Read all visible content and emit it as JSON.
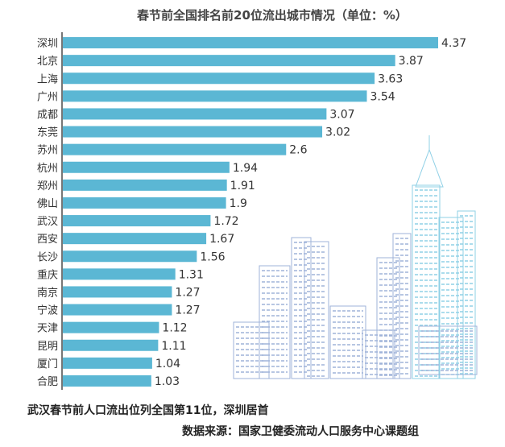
{
  "chart_data": {
    "type": "bar",
    "orientation": "horizontal",
    "title": "春节前全国排名前20位流出城市情况（单位：%）",
    "categories": [
      "深圳",
      "北京",
      "上海",
      "广州",
      "成都",
      "东莞",
      "苏州",
      "杭州",
      "郑州",
      "佛山",
      "武汉",
      "西安",
      "长沙",
      "重庆",
      "南京",
      "宁波",
      "天津",
      "昆明",
      "厦门",
      "合肥"
    ],
    "values": [
      4.37,
      3.87,
      3.63,
      3.54,
      3.07,
      3.02,
      2.6,
      1.94,
      1.91,
      1.9,
      1.72,
      1.67,
      1.56,
      1.31,
      1.27,
      1.27,
      1.12,
      1.11,
      1.04,
      1.03
    ],
    "value_labels": [
      "4.37",
      "3.87",
      "3.63",
      "3.54",
      "3.07",
      "3.02",
      "2.6",
      "1.94",
      "1.91",
      "1.9",
      "1.72",
      "1.67",
      "1.56",
      "1.31",
      "1.27",
      "1.27",
      "1.12",
      "1.11",
      "1.04",
      "1.03"
    ],
    "xlim": [
      0,
      4.37
    ],
    "grid": false,
    "bar_color": "#5bb7d4",
    "axis_color": "#4a4a4a"
  },
  "caption": "武汉春节前人口流出位列全国第11位，深圳居首",
  "source": "数据来源：国家卫健委流动人口服务中心课题组",
  "decoration": {
    "skyline_color": "#9fb3d9",
    "skyline_accent": "#8fd0e6"
  }
}
